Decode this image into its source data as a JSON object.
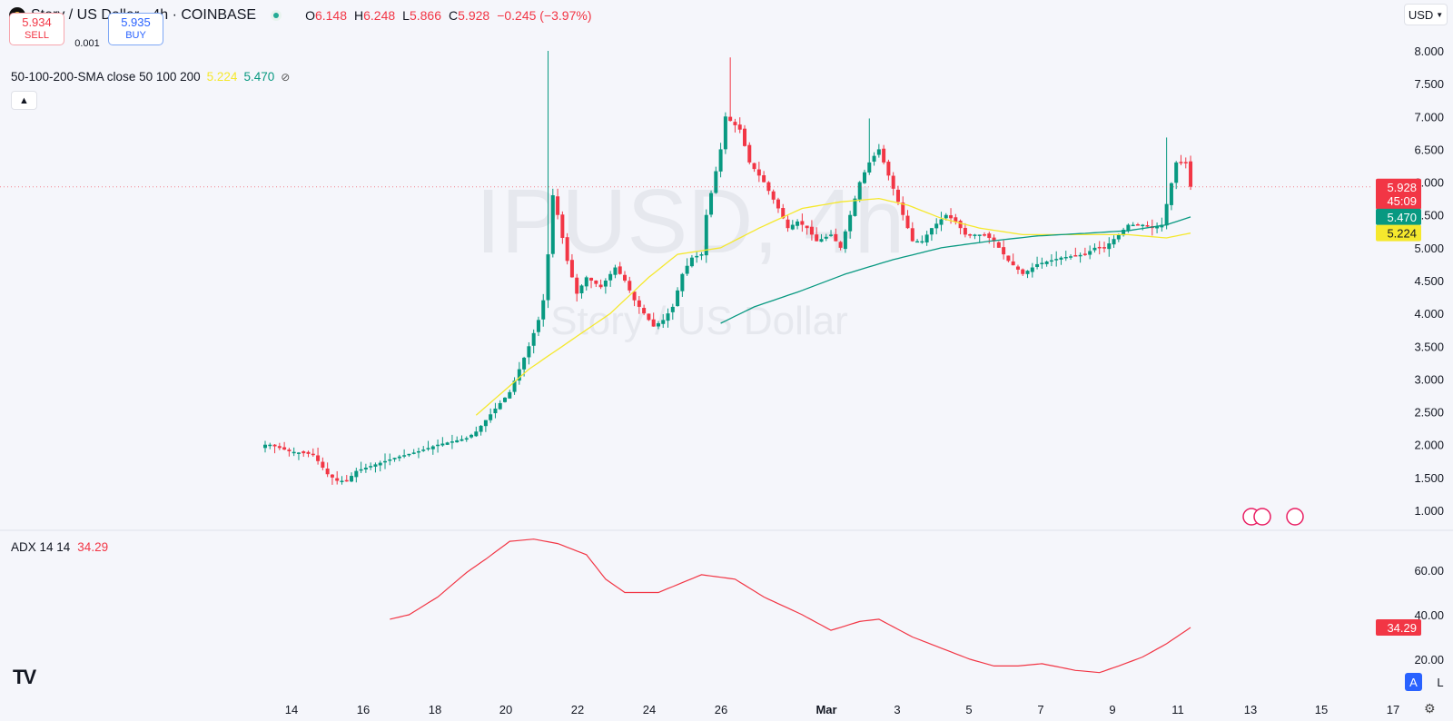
{
  "header": {
    "symbol_title": "Story / US Dollar · 4h · COINBASE",
    "ohlc": [
      {
        "key": "O",
        "value": "6.148"
      },
      {
        "key": "H",
        "value": "6.248"
      },
      {
        "key": "L",
        "value": "5.866"
      },
      {
        "key": "C",
        "value": "5.928"
      }
    ],
    "change": "−0.245 (−3.97%)",
    "currency_button": "USD"
  },
  "trade": {
    "sell_price": "5.934",
    "sell_label": "SELL",
    "spread": "0.001",
    "buy_price": "5.935",
    "buy_label": "BUY"
  },
  "indicators": {
    "sma_label": "50-100-200-SMA close 50 100 200",
    "sma_val_1": "5.224",
    "sma_val_2": "5.470",
    "adx_label": "ADX 14 14",
    "adx_value": "34.29"
  },
  "watermark": {
    "symbol": "IPUSD, 4h",
    "name": "Story / US Dollar"
  },
  "colors": {
    "up": "#089981",
    "down": "#f23645",
    "sma50": "#f5e82d",
    "sma100": "#089981",
    "adx": "#f23645",
    "accent": "#2962ff"
  },
  "chart_data": [
    {
      "type": "candlestick",
      "title": "Story / US Dollar · 4h · COINBASE",
      "ylim": [
        0.8,
        8.2
      ],
      "y_ticks": [
        "8.000",
        "7.500",
        "7.000",
        "6.500",
        "6.000",
        "5.500",
        "5.000",
        "4.500",
        "4.000",
        "3.500",
        "3.000",
        "2.500",
        "2.000",
        "1.500",
        "1.000"
      ],
      "x_ticks": [
        "14",
        "16",
        "18",
        "20",
        "22",
        "24",
        "26",
        "Mar",
        "3",
        "5",
        "7",
        "9",
        "11",
        "13",
        "15",
        "17"
      ],
      "price_labels": {
        "last": "5.928",
        "countdown": "45:09",
        "sma100": "5.470",
        "sma50": "5.224"
      },
      "candle_anchors_close": [
        [
          1,
          2.0
        ],
        [
          5,
          1.9
        ],
        [
          10,
          1.85
        ],
        [
          13,
          1.55
        ],
        [
          15,
          1.45
        ],
        [
          17,
          1.45
        ],
        [
          19,
          1.6
        ],
        [
          23,
          1.7
        ],
        [
          27,
          1.8
        ],
        [
          32,
          1.9
        ],
        [
          36,
          2.0
        ],
        [
          42,
          2.1
        ],
        [
          44,
          2.2
        ],
        [
          48,
          2.55
        ],
        [
          51,
          2.8
        ],
        [
          55,
          3.5
        ],
        [
          57,
          3.9
        ],
        [
          58,
          4.2
        ],
        [
          59,
          4.9
        ],
        [
          60,
          5.8
        ],
        [
          61,
          5.5
        ],
        [
          63,
          4.8
        ],
        [
          65,
          4.3
        ],
        [
          67,
          4.55
        ],
        [
          70,
          4.4
        ],
        [
          73,
          4.7
        ],
        [
          75,
          4.5
        ],
        [
          77,
          4.2
        ],
        [
          79,
          4.0
        ],
        [
          81,
          3.8
        ],
        [
          83,
          3.9
        ],
        [
          85,
          4.1
        ],
        [
          87,
          4.6
        ],
        [
          89,
          4.85
        ],
        [
          91,
          4.9
        ],
        [
          92,
          5.5
        ],
        [
          95,
          6.5
        ],
        [
          96,
          7.0
        ],
        [
          99,
          6.8
        ],
        [
          101,
          6.3
        ],
        [
          104,
          6.0
        ],
        [
          107,
          5.6
        ],
        [
          109,
          5.3
        ],
        [
          111,
          5.4
        ],
        [
          113,
          5.3
        ],
        [
          115,
          5.1
        ],
        [
          118,
          5.2
        ],
        [
          120,
          5.0
        ],
        [
          122,
          5.5
        ],
        [
          124,
          6.0
        ],
        [
          126,
          6.3
        ],
        [
          128,
          6.5
        ],
        [
          131,
          5.9
        ],
        [
          133,
          5.5
        ],
        [
          135,
          5.1
        ],
        [
          137,
          5.1
        ],
        [
          139,
          5.3
        ],
        [
          142,
          5.5
        ],
        [
          144,
          5.4
        ],
        [
          146,
          5.2
        ],
        [
          150,
          5.2
        ],
        [
          152,
          5.1
        ],
        [
          155,
          4.8
        ],
        [
          158,
          4.6
        ],
        [
          161,
          4.75
        ],
        [
          166,
          4.85
        ],
        [
          171,
          4.9
        ],
        [
          173,
          5.0
        ],
        [
          175,
          5.0
        ],
        [
          178,
          5.2
        ],
        [
          180,
          5.35
        ],
        [
          183,
          5.35
        ],
        [
          185,
          5.3
        ],
        [
          187,
          5.35
        ],
        [
          190,
          6.3
        ],
        [
          192,
          6.3
        ],
        [
          193,
          5.93
        ]
      ],
      "spikes": [
        {
          "index": 59,
          "high": 8.0
        },
        {
          "index": 97,
          "high": 7.9
        },
        {
          "index": 126,
          "high": 6.97
        },
        {
          "index": 188,
          "high": 6.68
        }
      ],
      "sma50_anchors": [
        [
          44,
          2.45
        ],
        [
          55,
          3.15
        ],
        [
          63,
          3.55
        ],
        [
          72,
          4.0
        ],
        [
          80,
          4.55
        ],
        [
          86,
          4.9
        ],
        [
          95,
          5.0
        ],
        [
          103,
          5.3
        ],
        [
          112,
          5.6
        ],
        [
          120,
          5.7
        ],
        [
          128,
          5.75
        ],
        [
          134,
          5.65
        ],
        [
          141,
          5.45
        ],
        [
          149,
          5.3
        ],
        [
          158,
          5.2
        ],
        [
          166,
          5.2
        ],
        [
          173,
          5.2
        ],
        [
          180,
          5.2
        ],
        [
          188,
          5.15
        ],
        [
          193,
          5.224
        ]
      ],
      "sma100_anchors": [
        [
          95,
          3.85
        ],
        [
          102,
          4.1
        ],
        [
          112,
          4.35
        ],
        [
          121,
          4.6
        ],
        [
          131,
          4.82
        ],
        [
          141,
          5.0
        ],
        [
          151,
          5.1
        ],
        [
          161,
          5.18
        ],
        [
          171,
          5.22
        ],
        [
          180,
          5.26
        ],
        [
          188,
          5.35
        ],
        [
          193,
          5.47
        ]
      ],
      "candle_count": 194
    },
    {
      "type": "line",
      "title": "ADX 14 14",
      "ylim": [
        10,
        75
      ],
      "y_ticks": [
        "60.00",
        "40.00",
        "20.00"
      ],
      "last_value": "34.29",
      "series": [
        {
          "values_anchors": [
            [
              26,
              38
            ],
            [
              30,
              40
            ],
            [
              36,
              48
            ],
            [
              42,
              59
            ],
            [
              46,
              65
            ],
            [
              51,
              73
            ],
            [
              56,
              74
            ],
            [
              61,
              72
            ],
            [
              67,
              67
            ],
            [
              71,
              56
            ],
            [
              75,
              50
            ],
            [
              82,
              50
            ],
            [
              91,
              58
            ],
            [
              98,
              56
            ],
            [
              104,
              48
            ],
            [
              112,
              40
            ],
            [
              118,
              33
            ],
            [
              124,
              37
            ],
            [
              128,
              38
            ],
            [
              135,
              30
            ],
            [
              141,
              25
            ],
            [
              147,
              20
            ],
            [
              152,
              17
            ],
            [
              157,
              17
            ],
            [
              162,
              18
            ],
            [
              169,
              15
            ],
            [
              174,
              14
            ],
            [
              178,
              17
            ],
            [
              183,
              21
            ],
            [
              188,
              27
            ],
            [
              193,
              34.29
            ]
          ]
        }
      ]
    }
  ]
}
